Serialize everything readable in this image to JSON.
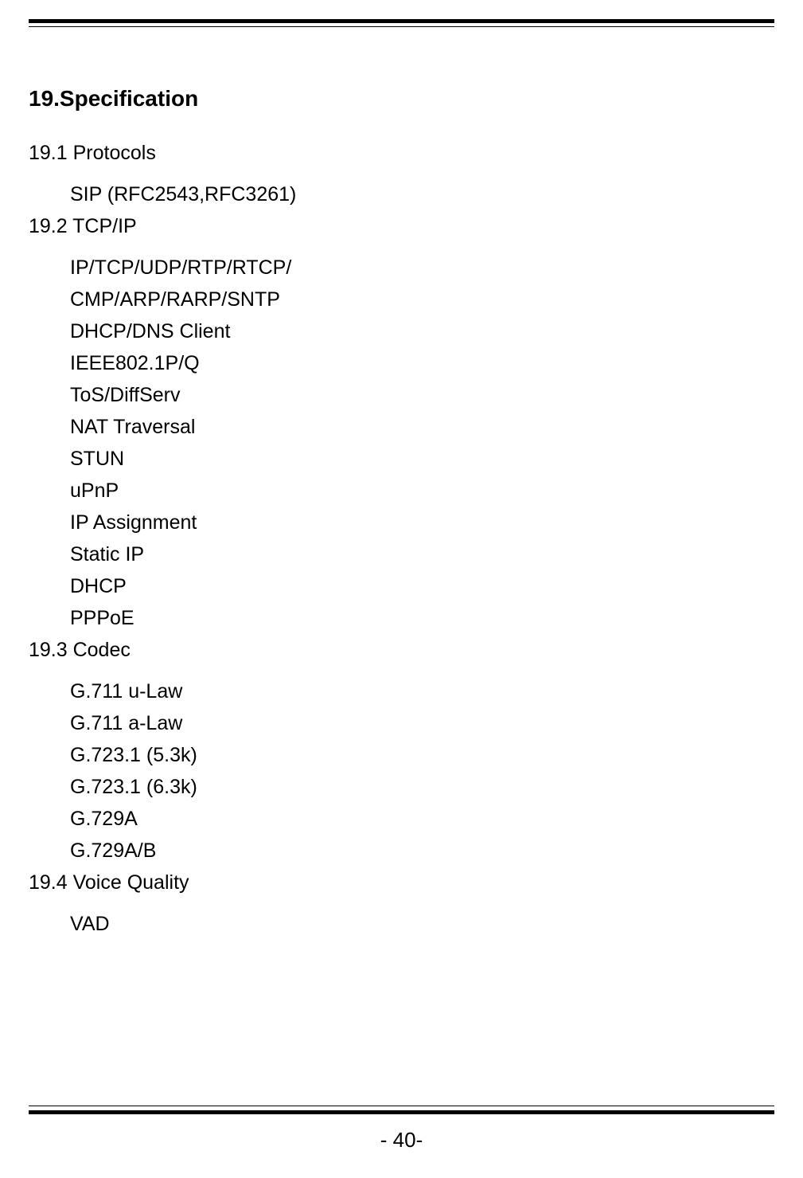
{
  "heading": "19.Specification",
  "sections": [
    {
      "title": "19.1 Protocols",
      "items": [
        "SIP (RFC2543,RFC3261)"
      ]
    },
    {
      "title": "19.2 TCP/IP",
      "items": [
        "IP/TCP/UDP/RTP/RTCP/",
        "CMP/ARP/RARP/SNTP",
        "DHCP/DNS Client",
        "IEEE802.1P/Q",
        "ToS/DiffServ",
        "NAT Traversal",
        "STUN",
        "uPnP",
        "IP Assignment",
        "Static IP",
        "DHCP",
        "PPPoE"
      ]
    },
    {
      "title": "19.3 Codec",
      "items": [
        "G.711 u-Law",
        "G.711 a-Law",
        "G.723.1 (5.3k)",
        "G.723.1 (6.3k)",
        "G.729A",
        "G.729A/B"
      ]
    },
    {
      "title": "19.4 Voice Quality",
      "items": [
        "VAD"
      ]
    }
  ],
  "pageNumber": "- 40-",
  "styling": {
    "pageWidth": 1009,
    "pageHeight": 1479,
    "backgroundColor": "#ffffff",
    "textColor": "#000000",
    "borderColor": "#000000",
    "headingFontSize": 28,
    "headingFontWeight": "bold",
    "bodyFontSize": 25,
    "pageNumberFontSize": 26,
    "indentLeft": 52,
    "lineHeight": 1.6,
    "contentMarginLeft": 36,
    "contentMarginRight": 36,
    "topBorderThickness": 5,
    "bottomBorderThickness": 5
  }
}
